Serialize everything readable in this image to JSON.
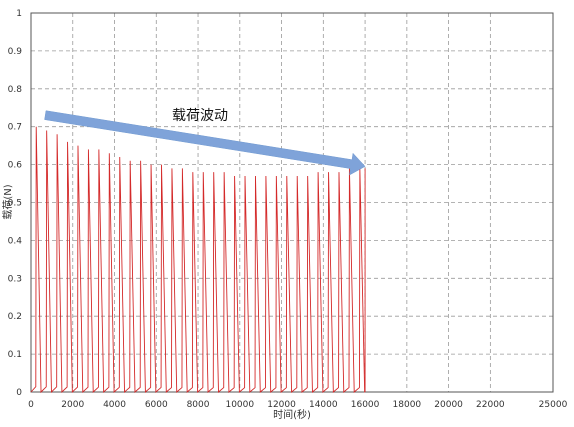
{
  "chart_data": {
    "type": "line",
    "title": "",
    "xlabel": "时间(秒)",
    "ylabel": "载荷(N)",
    "xlim": [
      0,
      25000
    ],
    "ylim": [
      0,
      1
    ],
    "x_ticks": [
      0,
      2000,
      4000,
      6000,
      8000,
      10000,
      12000,
      14000,
      16000,
      18000,
      20000,
      22000,
      25000
    ],
    "y_ticks": [
      0,
      0.1,
      0.2,
      0.3,
      0.4,
      0.5,
      0.6,
      0.7,
      0.8,
      0.9,
      1
    ],
    "grid": true,
    "grid_style": "dashed",
    "legend": "none",
    "annotation": {
      "text": "载荷波动",
      "arrow_from": [
        300,
        0.72
      ],
      "arrow_to": [
        16000,
        0.59
      ]
    },
    "series": [
      {
        "color": "#d42a2a",
        "cycle_period_s": 500,
        "x_start": 0,
        "x_end": 16000,
        "peaks": [
          {
            "x": 250,
            "y": 0.7
          },
          {
            "x": 750,
            "y": 0.69
          },
          {
            "x": 1250,
            "y": 0.68
          },
          {
            "x": 1750,
            "y": 0.66
          },
          {
            "x": 2250,
            "y": 0.65
          },
          {
            "x": 2750,
            "y": 0.64
          },
          {
            "x": 3250,
            "y": 0.64
          },
          {
            "x": 3750,
            "y": 0.63
          },
          {
            "x": 4250,
            "y": 0.62
          },
          {
            "x": 4750,
            "y": 0.61
          },
          {
            "x": 5250,
            "y": 0.61
          },
          {
            "x": 5750,
            "y": 0.6
          },
          {
            "x": 6250,
            "y": 0.6
          },
          {
            "x": 6750,
            "y": 0.59
          },
          {
            "x": 7250,
            "y": 0.59
          },
          {
            "x": 7750,
            "y": 0.58
          },
          {
            "x": 8250,
            "y": 0.58
          },
          {
            "x": 8750,
            "y": 0.58
          },
          {
            "x": 9250,
            "y": 0.58
          },
          {
            "x": 9750,
            "y": 0.57
          },
          {
            "x": 10250,
            "y": 0.57
          },
          {
            "x": 10750,
            "y": 0.57
          },
          {
            "x": 11250,
            "y": 0.57
          },
          {
            "x": 11750,
            "y": 0.57
          },
          {
            "x": 12250,
            "y": 0.57
          },
          {
            "x": 12750,
            "y": 0.57
          },
          {
            "x": 13250,
            "y": 0.57
          },
          {
            "x": 13750,
            "y": 0.58
          },
          {
            "x": 14250,
            "y": 0.58
          },
          {
            "x": 14750,
            "y": 0.58
          },
          {
            "x": 15250,
            "y": 0.59
          },
          {
            "x": 15750,
            "y": 0.59
          }
        ]
      }
    ]
  }
}
